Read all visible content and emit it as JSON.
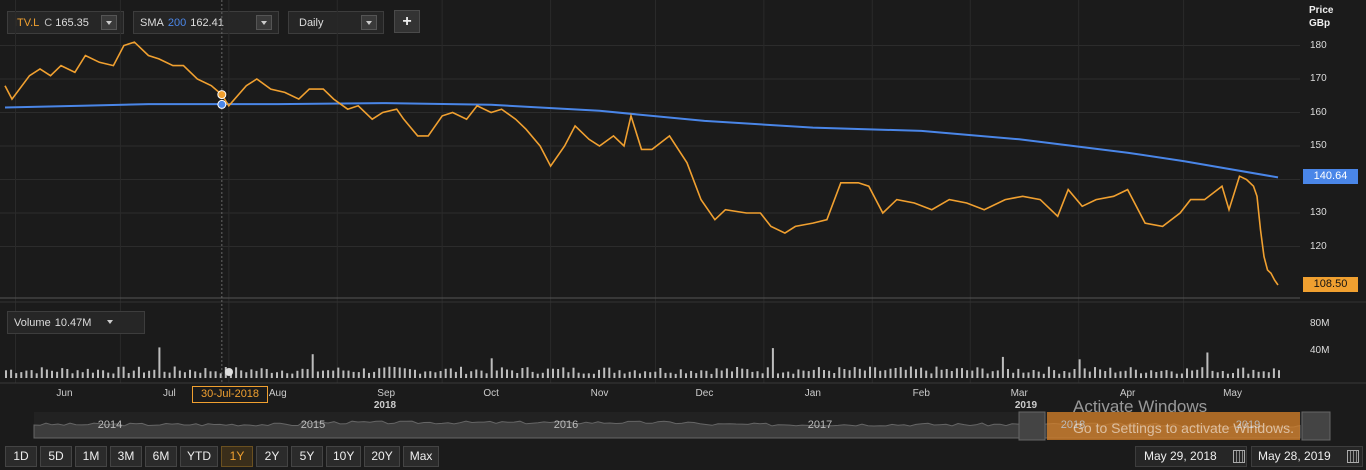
{
  "header": {
    "symbol": "ITV.L",
    "close_prefix": "C",
    "close_value": "165.35",
    "sma_label": "SMA",
    "sma_period": "200",
    "sma_value": "162.41",
    "interval": "Daily",
    "add_label": "+"
  },
  "price_axis": {
    "title_line1": "Price",
    "title_line2": "GBp",
    "ticks": [
      "180",
      "170",
      "160",
      "150",
      "140",
      "130",
      "120"
    ],
    "last_sma_tag": "140.64",
    "last_price_tag": "108.50"
  },
  "volume": {
    "label": "Volume",
    "value": "10.47M",
    "ticks": [
      "80M",
      "40M"
    ]
  },
  "x_axis": {
    "months": [
      "Jun",
      "Jul",
      "Aug",
      "Sep",
      "Oct",
      "Nov",
      "Dec",
      "Jan",
      "Feb",
      "Mar",
      "Apr",
      "May"
    ],
    "years": [
      "2018",
      "2019"
    ],
    "crosshair_date": "30-Jul-2018"
  },
  "navigator": {
    "years": [
      "2014",
      "2015",
      "2016",
      "2017",
      "2018",
      "2019"
    ]
  },
  "range_buttons": [
    "1D",
    "5D",
    "1M",
    "3M",
    "6M",
    "YTD",
    "1Y",
    "2Y",
    "5Y",
    "10Y",
    "20Y",
    "Max"
  ],
  "active_range": "1Y",
  "date_range": {
    "from": "May 29, 2018",
    "to": "May 28, 2019"
  },
  "watermark": {
    "line1": "Activate Windows",
    "line2": "Go to Settings to activate Windows."
  },
  "colors": {
    "price": "#f0a030",
    "sma": "#4a86e8",
    "background": "#1b1b1b",
    "volume": "#cccccc"
  },
  "chart_data": {
    "type": "line",
    "title": "",
    "ylabel": "Price GBp",
    "ylim": [
      106,
      183
    ],
    "x_range": [
      "2018-05-29",
      "2019-05-28"
    ],
    "series": [
      {
        "name": "ITV.L",
        "points": [
          [
            "2018-05-29",
            168
          ],
          [
            "2018-05-31",
            164
          ],
          [
            "2018-06-05",
            171
          ],
          [
            "2018-06-08",
            173
          ],
          [
            "2018-06-11",
            171
          ],
          [
            "2018-06-14",
            174
          ],
          [
            "2018-06-18",
            172
          ],
          [
            "2018-06-21",
            177
          ],
          [
            "2018-06-25",
            175
          ],
          [
            "2018-06-29",
            174
          ],
          [
            "2018-07-02",
            180
          ],
          [
            "2018-07-05",
            181
          ],
          [
            "2018-07-09",
            177
          ],
          [
            "2018-07-12",
            176
          ],
          [
            "2018-07-16",
            174
          ],
          [
            "2018-07-19",
            174
          ],
          [
            "2018-07-23",
            170
          ],
          [
            "2018-07-27",
            168
          ],
          [
            "2018-07-30",
            165.35
          ],
          [
            "2018-08-01",
            162
          ],
          [
            "2018-08-06",
            168
          ],
          [
            "2018-08-09",
            170
          ],
          [
            "2018-08-13",
            167
          ],
          [
            "2018-08-17",
            166
          ],
          [
            "2018-08-21",
            164
          ],
          [
            "2018-08-24",
            167
          ],
          [
            "2018-08-28",
            167
          ],
          [
            "2018-08-31",
            164
          ],
          [
            "2018-09-04",
            161
          ],
          [
            "2018-09-07",
            162
          ],
          [
            "2018-09-11",
            158
          ],
          [
            "2018-09-14",
            160
          ],
          [
            "2018-09-18",
            161
          ],
          [
            "2018-09-20",
            158
          ],
          [
            "2018-09-24",
            153
          ],
          [
            "2018-09-27",
            153
          ],
          [
            "2018-10-01",
            159
          ],
          [
            "2018-10-04",
            160
          ],
          [
            "2018-10-08",
            158
          ],
          [
            "2018-10-11",
            162
          ],
          [
            "2018-10-15",
            160
          ],
          [
            "2018-10-18",
            161
          ],
          [
            "2018-10-22",
            158
          ],
          [
            "2018-10-25",
            155
          ],
          [
            "2018-10-29",
            150
          ],
          [
            "2018-11-01",
            144
          ],
          [
            "2018-11-05",
            150
          ],
          [
            "2018-11-08",
            156
          ],
          [
            "2018-11-12",
            152
          ],
          [
            "2018-11-15",
            150
          ],
          [
            "2018-11-19",
            153
          ],
          [
            "2018-11-22",
            150
          ],
          [
            "2018-11-24",
            159
          ],
          [
            "2018-11-27",
            149
          ],
          [
            "2018-11-30",
            149
          ],
          [
            "2018-12-05",
            153
          ],
          [
            "2018-12-10",
            145
          ],
          [
            "2018-12-14",
            134
          ],
          [
            "2018-12-18",
            128
          ],
          [
            "2018-12-21",
            131
          ],
          [
            "2018-12-27",
            130
          ],
          [
            "2018-12-31",
            130
          ],
          [
            "2019-01-03",
            126
          ],
          [
            "2019-01-07",
            124
          ],
          [
            "2019-01-10",
            126
          ],
          [
            "2019-01-15",
            127
          ],
          [
            "2019-01-19",
            128
          ],
          [
            "2019-01-23",
            139
          ],
          [
            "2019-01-28",
            139
          ],
          [
            "2019-01-31",
            138
          ],
          [
            "2019-02-04",
            130
          ],
          [
            "2019-02-08",
            134
          ],
          [
            "2019-02-13",
            133
          ],
          [
            "2019-02-18",
            131
          ],
          [
            "2019-02-23",
            134
          ],
          [
            "2019-02-28",
            133
          ],
          [
            "2019-03-05",
            131
          ],
          [
            "2019-03-11",
            134
          ],
          [
            "2019-03-16",
            135
          ],
          [
            "2019-03-21",
            134
          ],
          [
            "2019-03-26",
            129
          ],
          [
            "2019-03-29",
            137
          ],
          [
            "2019-04-02",
            132
          ],
          [
            "2019-04-06",
            134
          ],
          [
            "2019-04-11",
            135
          ],
          [
            "2019-04-15",
            137
          ],
          [
            "2019-04-20",
            127
          ],
          [
            "2019-04-25",
            126
          ],
          [
            "2019-04-30",
            130
          ],
          [
            "2019-05-03",
            134
          ],
          [
            "2019-05-07",
            134
          ],
          [
            "2019-05-12",
            138
          ],
          [
            "2019-05-14",
            131
          ],
          [
            "2019-05-17",
            141
          ],
          [
            "2019-05-19",
            140
          ],
          [
            "2019-05-21",
            138
          ],
          [
            "2019-05-22",
            135
          ],
          [
            "2019-05-23",
            125
          ],
          [
            "2019-05-24",
            117
          ],
          [
            "2019-05-25",
            113
          ],
          [
            "2019-05-26",
            112
          ],
          [
            "2019-05-27",
            110
          ],
          [
            "2019-05-28",
            108.5
          ]
        ]
      },
      {
        "name": "SMA 200",
        "points": [
          [
            "2018-05-29",
            161.5
          ],
          [
            "2018-06-20",
            162
          ],
          [
            "2018-07-09",
            162.5
          ],
          [
            "2018-08-15",
            162.5
          ],
          [
            "2018-09-15",
            162.8
          ],
          [
            "2018-10-15",
            162.3
          ],
          [
            "2018-11-15",
            160.5
          ],
          [
            "2018-12-15",
            157.5
          ],
          [
            "2019-01-15",
            155.5
          ],
          [
            "2019-02-15",
            154.5
          ],
          [
            "2019-03-15",
            152
          ],
          [
            "2019-04-15",
            148
          ],
          [
            "2019-05-01",
            145.5
          ],
          [
            "2019-05-28",
            140.64
          ]
        ]
      }
    ],
    "volume_ylim": [
      0,
      90
    ]
  }
}
